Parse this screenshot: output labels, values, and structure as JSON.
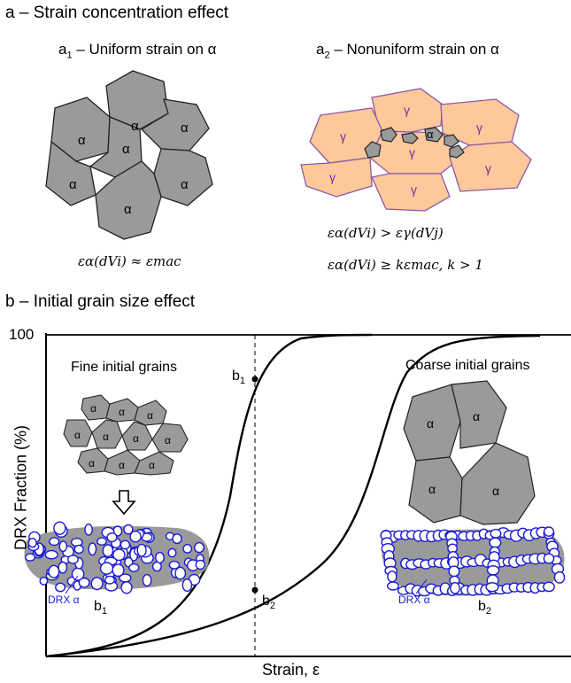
{
  "section_a": {
    "title": "a – Strain concentration effect",
    "panel_a1": {
      "title_prefix": "a",
      "title_sub": "1",
      "title_rest": " – Uniform strain on α",
      "grain_label": "α",
      "equation": "εα(dVi) ≈ εmac"
    },
    "panel_a2": {
      "title_prefix": "a",
      "title_sub": "2",
      "title_rest": " – Nonuniform strain on α",
      "gamma_label": "γ",
      "alpha_label": "α",
      "equation_1": "εα(dVi) > εγ(dVj)",
      "equation_2": "εα(dVi) ≥ kεmac, k > 1"
    }
  },
  "section_b": {
    "title": "b – Initial grain size effect",
    "y_axis_label": "DRX Fraction (%)",
    "y_tick_100": "100",
    "x_axis_label": "Strain, ε",
    "fine_label": "Fine initial grains",
    "coarse_label": "Coarse initial grains",
    "drx_label": "DRX α",
    "point_b1": {
      "prefix": "b",
      "sub": "1"
    },
    "point_b2": {
      "prefix": "b",
      "sub": "2"
    },
    "micro_b1": {
      "prefix": "b",
      "sub": "1"
    },
    "micro_b2": {
      "prefix": "b",
      "sub": "2"
    },
    "alpha_label": "α"
  },
  "colors": {
    "grain_gray": "#9a9a9a",
    "gamma_orange": "#fdc89a",
    "gamma_edge": "#8a5aa8",
    "drx_blue": "#1a1ad6",
    "gamma_text": "#7a2aa0"
  }
}
